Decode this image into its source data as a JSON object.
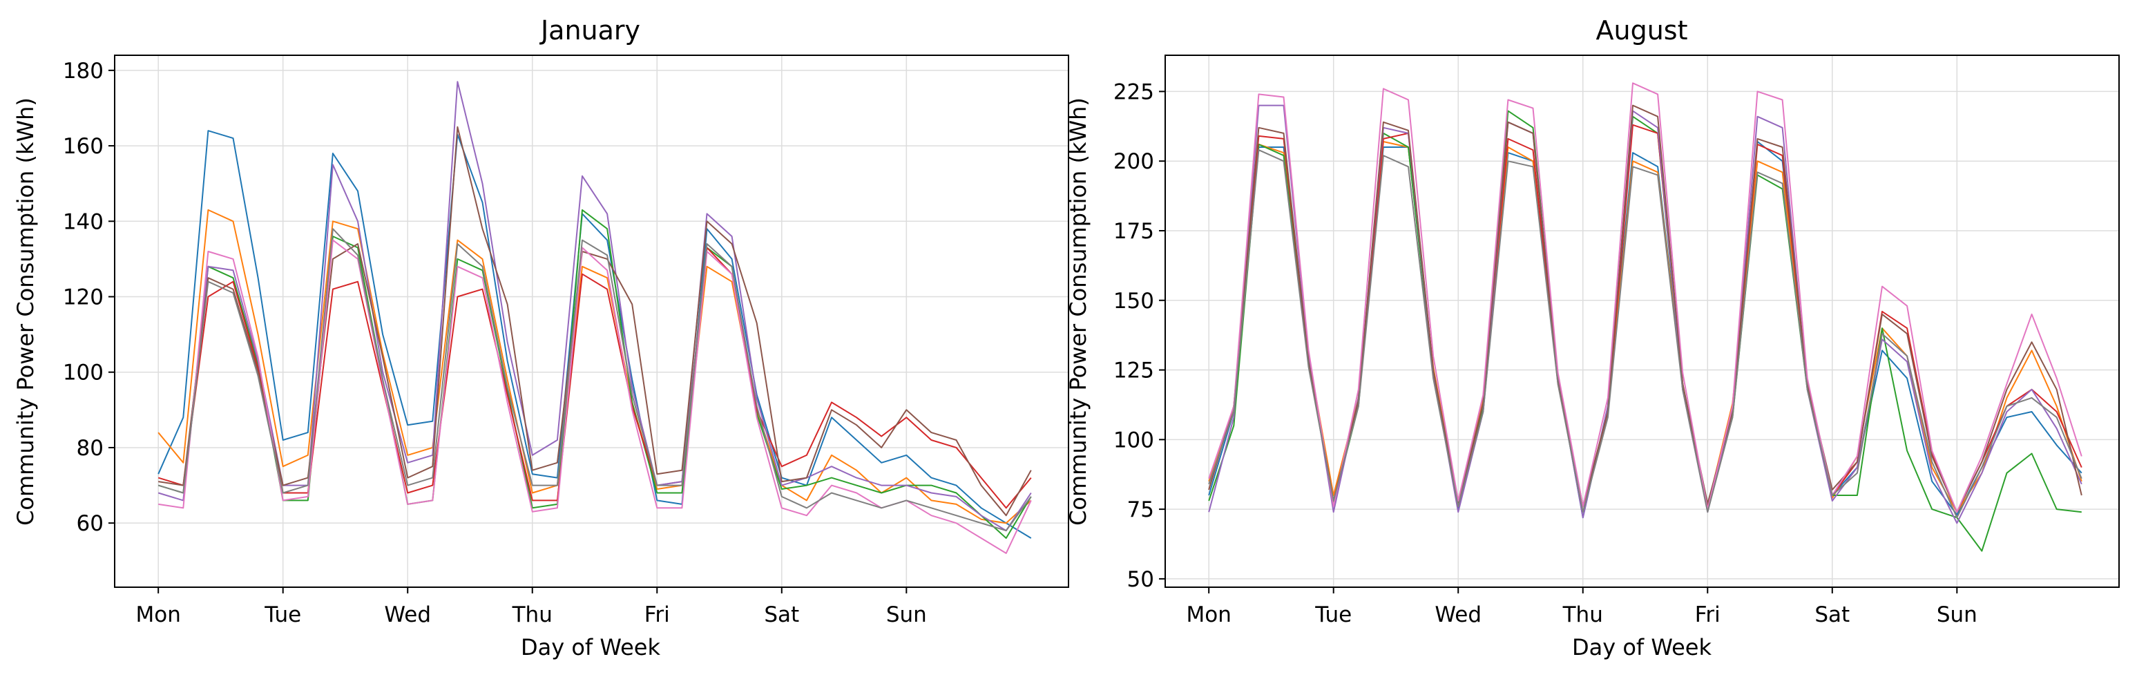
{
  "chart_data": [
    {
      "type": "line",
      "title": "January",
      "xlabel": "Day of Week",
      "ylabel": "Community Power Consumption (kWh)",
      "xlim": [
        -0.35,
        7.3
      ],
      "ylim": [
        43,
        184
      ],
      "yticks": [
        60,
        80,
        100,
        120,
        140,
        160,
        180
      ],
      "x_tick_labels": [
        "Mon",
        "Tue",
        "Wed",
        "Thu",
        "Fri",
        "Sat",
        "Sun"
      ],
      "grid": true,
      "x": [
        0,
        0.2,
        0.4,
        0.6,
        0.8,
        1.0,
        1.2,
        1.4,
        1.6,
        1.8,
        2.0,
        2.2,
        2.4,
        2.6,
        2.8,
        3.0,
        3.2,
        3.4,
        3.6,
        3.8,
        4.0,
        4.2,
        4.4,
        4.6,
        4.8,
        5.0,
        5.2,
        5.4,
        5.6,
        5.8,
        6.0,
        6.2,
        6.4,
        6.6,
        6.8,
        7.0
      ],
      "series": [
        {
          "color": "#1f77b4",
          "values": [
            73,
            88,
            164,
            162,
            125,
            82,
            84,
            158,
            148,
            110,
            86,
            87,
            163,
            145,
            103,
            73,
            72,
            142,
            135,
            98,
            66,
            65,
            138,
            130,
            94,
            72,
            70,
            88,
            82,
            76,
            78,
            72,
            70,
            64,
            60,
            56
          ]
        },
        {
          "color": "#ff7f0e",
          "values": [
            84,
            76,
            143,
            140,
            110,
            75,
            78,
            140,
            138,
            105,
            78,
            80,
            135,
            130,
            98,
            68,
            70,
            128,
            125,
            92,
            69,
            70,
            128,
            124,
            90,
            70,
            66,
            78,
            74,
            68,
            72,
            66,
            65,
            61,
            60,
            66
          ]
        },
        {
          "color": "#2ca02c",
          "values": [
            70,
            68,
            128,
            125,
            102,
            66,
            66,
            136,
            133,
            98,
            65,
            66,
            130,
            127,
            95,
            64,
            65,
            143,
            138,
            92,
            68,
            68,
            133,
            128,
            89,
            69,
            70,
            72,
            70,
            68,
            70,
            70,
            68,
            62,
            56,
            67
          ]
        },
        {
          "color": "#d62728",
          "values": [
            72,
            70,
            120,
            124,
            101,
            68,
            68,
            122,
            124,
            96,
            68,
            70,
            120,
            122,
            94,
            66,
            66,
            126,
            122,
            91,
            70,
            71,
            133,
            126,
            90,
            75,
            78,
            92,
            88,
            83,
            88,
            82,
            80,
            72,
            64,
            72
          ]
        },
        {
          "color": "#9467bd",
          "values": [
            68,
            66,
            128,
            127,
            103,
            70,
            70,
            155,
            140,
            100,
            76,
            78,
            177,
            150,
            108,
            78,
            82,
            152,
            142,
            96,
            70,
            71,
            142,
            136,
            93,
            70,
            72,
            75,
            72,
            70,
            70,
            68,
            67,
            62,
            58,
            68
          ]
        },
        {
          "color": "#8c564b",
          "values": [
            71,
            70,
            125,
            122,
            100,
            70,
            72,
            130,
            134,
            104,
            72,
            75,
            165,
            138,
            118,
            74,
            76,
            132,
            130,
            118,
            73,
            74,
            140,
            134,
            113,
            71,
            72,
            90,
            86,
            80,
            90,
            84,
            82,
            70,
            62,
            74
          ]
        },
        {
          "color": "#e377c2",
          "values": [
            65,
            64,
            132,
            130,
            104,
            66,
            67,
            135,
            130,
            97,
            65,
            66,
            128,
            125,
            92,
            63,
            64,
            133,
            127,
            90,
            64,
            64,
            132,
            126,
            88,
            64,
            62,
            70,
            68,
            64,
            66,
            62,
            60,
            56,
            52,
            66
          ]
        },
        {
          "color": "#7f7f7f",
          "values": [
            70,
            68,
            124,
            121,
            99,
            68,
            70,
            138,
            131,
            98,
            70,
            72,
            134,
            128,
            96,
            70,
            70,
            135,
            131,
            94,
            70,
            70,
            134,
            128,
            91,
            67,
            64,
            68,
            66,
            64,
            66,
            64,
            62,
            60,
            58,
            67
          ]
        }
      ]
    },
    {
      "type": "line",
      "title": "August",
      "xlabel": "Day of Week",
      "ylabel": "Community Power Consumption (kWh)",
      "xlim": [
        -0.35,
        7.3
      ],
      "ylim": [
        47,
        238
      ],
      "yticks": [
        50,
        75,
        100,
        125,
        150,
        175,
        200,
        225
      ],
      "x_tick_labels": [
        "Mon",
        "Tue",
        "Wed",
        "Thu",
        "Fri",
        "Sat",
        "Sun"
      ],
      "grid": true,
      "x": [
        0,
        0.2,
        0.4,
        0.6,
        0.8,
        1.0,
        1.2,
        1.4,
        1.6,
        1.8,
        2.0,
        2.2,
        2.4,
        2.6,
        2.8,
        3.0,
        3.2,
        3.4,
        3.6,
        3.8,
        4.0,
        4.2,
        4.4,
        4.6,
        4.8,
        5.0,
        5.2,
        5.4,
        5.6,
        5.8,
        6.0,
        6.2,
        6.4,
        6.6,
        6.8,
        7.0
      ],
      "series": [
        {
          "color": "#1f77b4",
          "values": [
            80,
            110,
            205,
            205,
            130,
            76,
            115,
            205,
            205,
            125,
            75,
            110,
            203,
            200,
            122,
            72,
            112,
            203,
            198,
            120,
            76,
            112,
            207,
            200,
            120,
            80,
            90,
            132,
            122,
            85,
            73,
            90,
            108,
            110,
            98,
            88
          ]
        },
        {
          "color": "#ff7f0e",
          "values": [
            85,
            110,
            206,
            203,
            130,
            80,
            115,
            207,
            205,
            126,
            78,
            115,
            205,
            200,
            122,
            76,
            110,
            200,
            196,
            120,
            76,
            113,
            200,
            196,
            120,
            79,
            94,
            140,
            130,
            90,
            74,
            88,
            115,
            132,
            112,
            85
          ]
        },
        {
          "color": "#2ca02c",
          "values": [
            78,
            105,
            206,
            202,
            128,
            77,
            112,
            210,
            205,
            124,
            76,
            112,
            218,
            212,
            122,
            76,
            110,
            216,
            210,
            118,
            76,
            108,
            195,
            190,
            118,
            80,
            80,
            140,
            96,
            75,
            72,
            60,
            88,
            95,
            75,
            74
          ]
        },
        {
          "color": "#d62728",
          "values": [
            82,
            112,
            209,
            208,
            128,
            78,
            114,
            208,
            210,
            125,
            76,
            113,
            208,
            204,
            120,
            76,
            110,
            213,
            210,
            120,
            76,
            110,
            206,
            202,
            120,
            80,
            92,
            146,
            140,
            95,
            74,
            92,
            112,
            118,
            110,
            90
          ]
        },
        {
          "color": "#9467bd",
          "values": [
            74,
            108,
            220,
            220,
            130,
            74,
            115,
            212,
            210,
            124,
            74,
            110,
            214,
            210,
            122,
            72,
            112,
            218,
            212,
            118,
            74,
            110,
            216,
            212,
            118,
            78,
            90,
            136,
            128,
            88,
            70,
            88,
            110,
            118,
            104,
            84
          ]
        },
        {
          "color": "#8c564b",
          "values": [
            82,
            112,
            212,
            210,
            128,
            78,
            114,
            214,
            211,
            125,
            77,
            113,
            214,
            210,
            121,
            76,
            110,
            220,
            216,
            120,
            77,
            110,
            208,
            205,
            120,
            82,
            92,
            145,
            138,
            94,
            74,
            92,
            118,
            135,
            118,
            80
          ]
        },
        {
          "color": "#e377c2",
          "values": [
            86,
            112,
            224,
            223,
            132,
            76,
            118,
            226,
            222,
            130,
            78,
            116,
            222,
            219,
            124,
            76,
            115,
            228,
            224,
            124,
            75,
            112,
            225,
            222,
            122,
            80,
            94,
            155,
            148,
            96,
            74,
            94,
            120,
            145,
            122,
            94
          ]
        },
        {
          "color": "#7f7f7f",
          "values": [
            84,
            110,
            204,
            200,
            126,
            78,
            112,
            202,
            198,
            122,
            76,
            110,
            200,
            198,
            120,
            74,
            108,
            198,
            195,
            118,
            74,
            108,
            196,
            192,
            118,
            80,
            88,
            138,
            130,
            92,
            72,
            90,
            112,
            115,
            108,
            86
          ]
        }
      ]
    }
  ]
}
